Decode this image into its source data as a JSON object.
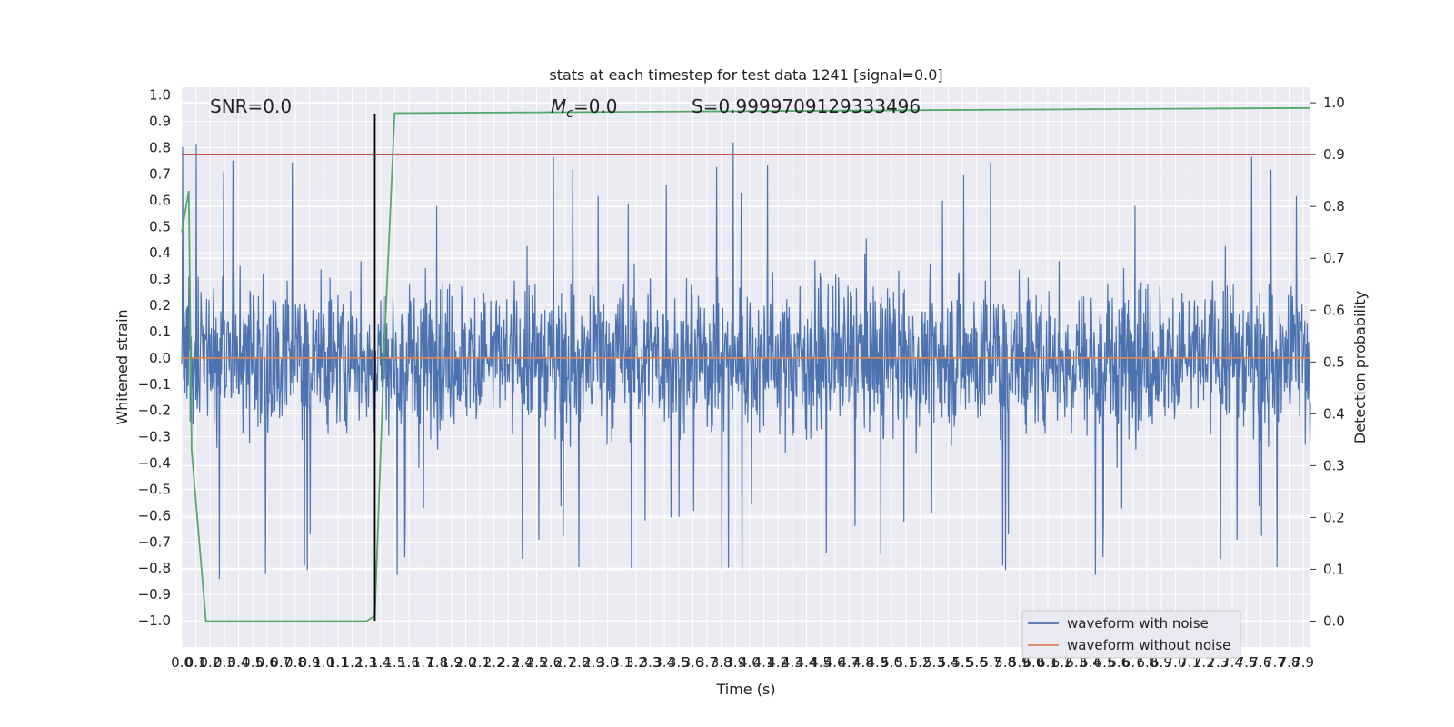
{
  "chart_data": {
    "type": "line",
    "title": "stats at each timestep for test data 1241 [signal=0.0]",
    "xlabel": "Time (s)",
    "ylabel": "Whitened strain",
    "y2label": "Detection probability",
    "xlim": [
      0.0,
      7.95
    ],
    "ylim": [
      -1.1,
      1.03
    ],
    "y2lim": [
      -0.05,
      1.03
    ],
    "grid": true,
    "legend_position": "lower right",
    "annotations": {
      "snr": "SNR=0.0",
      "mc": "=0.0",
      "mc_symbol": "M",
      "mc_sub": "c",
      "s": "S=0.9999709129333496"
    },
    "x_ticks": [
      "0.0",
      "0.1",
      "0.2",
      "0.3",
      "0.4",
      "0.5",
      "0.6",
      "0.7",
      "0.8",
      "0.9",
      "1.0",
      "1.1",
      "1.2",
      "1.3",
      "1.4",
      "1.5",
      "1.6",
      "1.7",
      "1.8",
      "1.9",
      "2.0",
      "2.1",
      "2.2",
      "2.3",
      "2.4",
      "2.5",
      "2.6",
      "2.7",
      "2.8",
      "2.9",
      "3.0",
      "3.1",
      "3.2",
      "3.3",
      "3.4",
      "3.5",
      "3.6",
      "3.7",
      "3.8",
      "3.9",
      "4.0",
      "4.1",
      "4.2",
      "4.3",
      "4.4",
      "4.5",
      "4.6",
      "4.7",
      "4.8",
      "4.9",
      "5.0",
      "5.1",
      "5.2",
      "5.3",
      "5.4",
      "5.5",
      "5.6",
      "5.7",
      "5.8",
      "5.9",
      "6.0",
      "6.1",
      "6.2",
      "6.3",
      "6.4",
      "6.5",
      "6.6",
      "6.7",
      "6.8",
      "6.9",
      "7.0",
      "7.1",
      "7.2",
      "7.3",
      "7.4",
      "7.5",
      "7.6",
      "7.7",
      "7.8",
      "7.9"
    ],
    "y_ticks": [
      "1.0",
      "0.9",
      "0.8",
      "0.7",
      "0.6",
      "0.5",
      "0.4",
      "0.3",
      "0.2",
      "0.1",
      "0.0",
      "-0.1",
      "-0.2",
      "-0.3",
      "-0.4",
      "-0.5",
      "-0.6",
      "-0.7",
      "-0.8",
      "-0.9",
      "-1.0"
    ],
    "y2_ticks": [
      "1.0",
      "0.9",
      "0.8",
      "0.7",
      "0.6",
      "0.5",
      "0.4",
      "0.3",
      "0.2",
      "0.1",
      "0.0"
    ],
    "series": [
      {
        "name": "waveform with noise",
        "color": "#4c72b0",
        "kind": "noise",
        "approx_band": [
          -0.45,
          0.45
        ],
        "approx_peaks": [
          0.93,
          -1.0
        ]
      },
      {
        "name": "waveform without noise",
        "color": "#dd8452",
        "kind": "flat",
        "value": 0.0
      }
    ],
    "detection_probability": {
      "color": "#55a868",
      "x": [
        0.0,
        0.05,
        0.07,
        0.17,
        1.3,
        1.36,
        1.43,
        1.5,
        7.95
      ],
      "y": [
        0.75,
        0.83,
        0.33,
        0.0,
        0.0,
        0.01,
        0.55,
        0.98,
        0.99
      ]
    },
    "threshold": {
      "color": "#c44e52",
      "y2": 0.9
    },
    "trigger_line": {
      "color": "#000000",
      "x": 1.36,
      "y_range": [
        -1.0,
        0.93
      ]
    }
  }
}
